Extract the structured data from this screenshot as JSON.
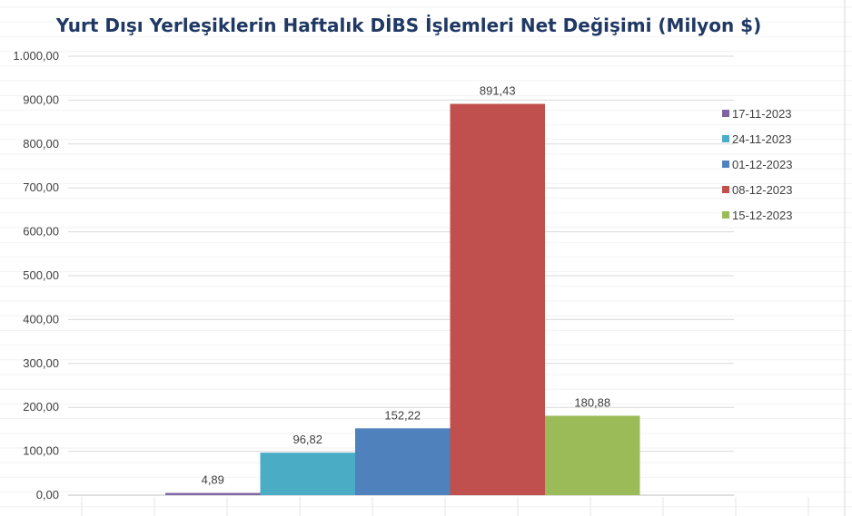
{
  "chart_data": {
    "type": "bar",
    "title": "Yurt Dışı Yerleşiklerin Haftalık DİBS İşlemleri Net Değişimi (Milyon $)",
    "ylim": [
      0,
      1000
    ],
    "y_ticks": [
      0,
      100,
      200,
      300,
      400,
      500,
      600,
      700,
      800,
      900,
      1000
    ],
    "y_tick_labels": [
      "0,00",
      "100,00",
      "200,00",
      "300,00",
      "400,00",
      "500,00",
      "600,00",
      "700,00",
      "800,00",
      "900,00",
      "1.000,00"
    ],
    "grid": true,
    "legend_position": "right",
    "series": [
      {
        "name": "17-11-2023",
        "value": 4.89,
        "label": "4,89",
        "color": "#8064a2"
      },
      {
        "name": "24-11-2023",
        "value": 96.82,
        "label": "96,82",
        "color": "#4bacc6"
      },
      {
        "name": "01-12-2023",
        "value": 152.22,
        "label": "152,22",
        "color": "#4f81bd"
      },
      {
        "name": "08-12-2023",
        "value": 891.43,
        "label": "891,43",
        "color": "#c0504d"
      },
      {
        "name": "15-12-2023",
        "value": 180.88,
        "label": "180,88",
        "color": "#9bbb59"
      }
    ]
  }
}
